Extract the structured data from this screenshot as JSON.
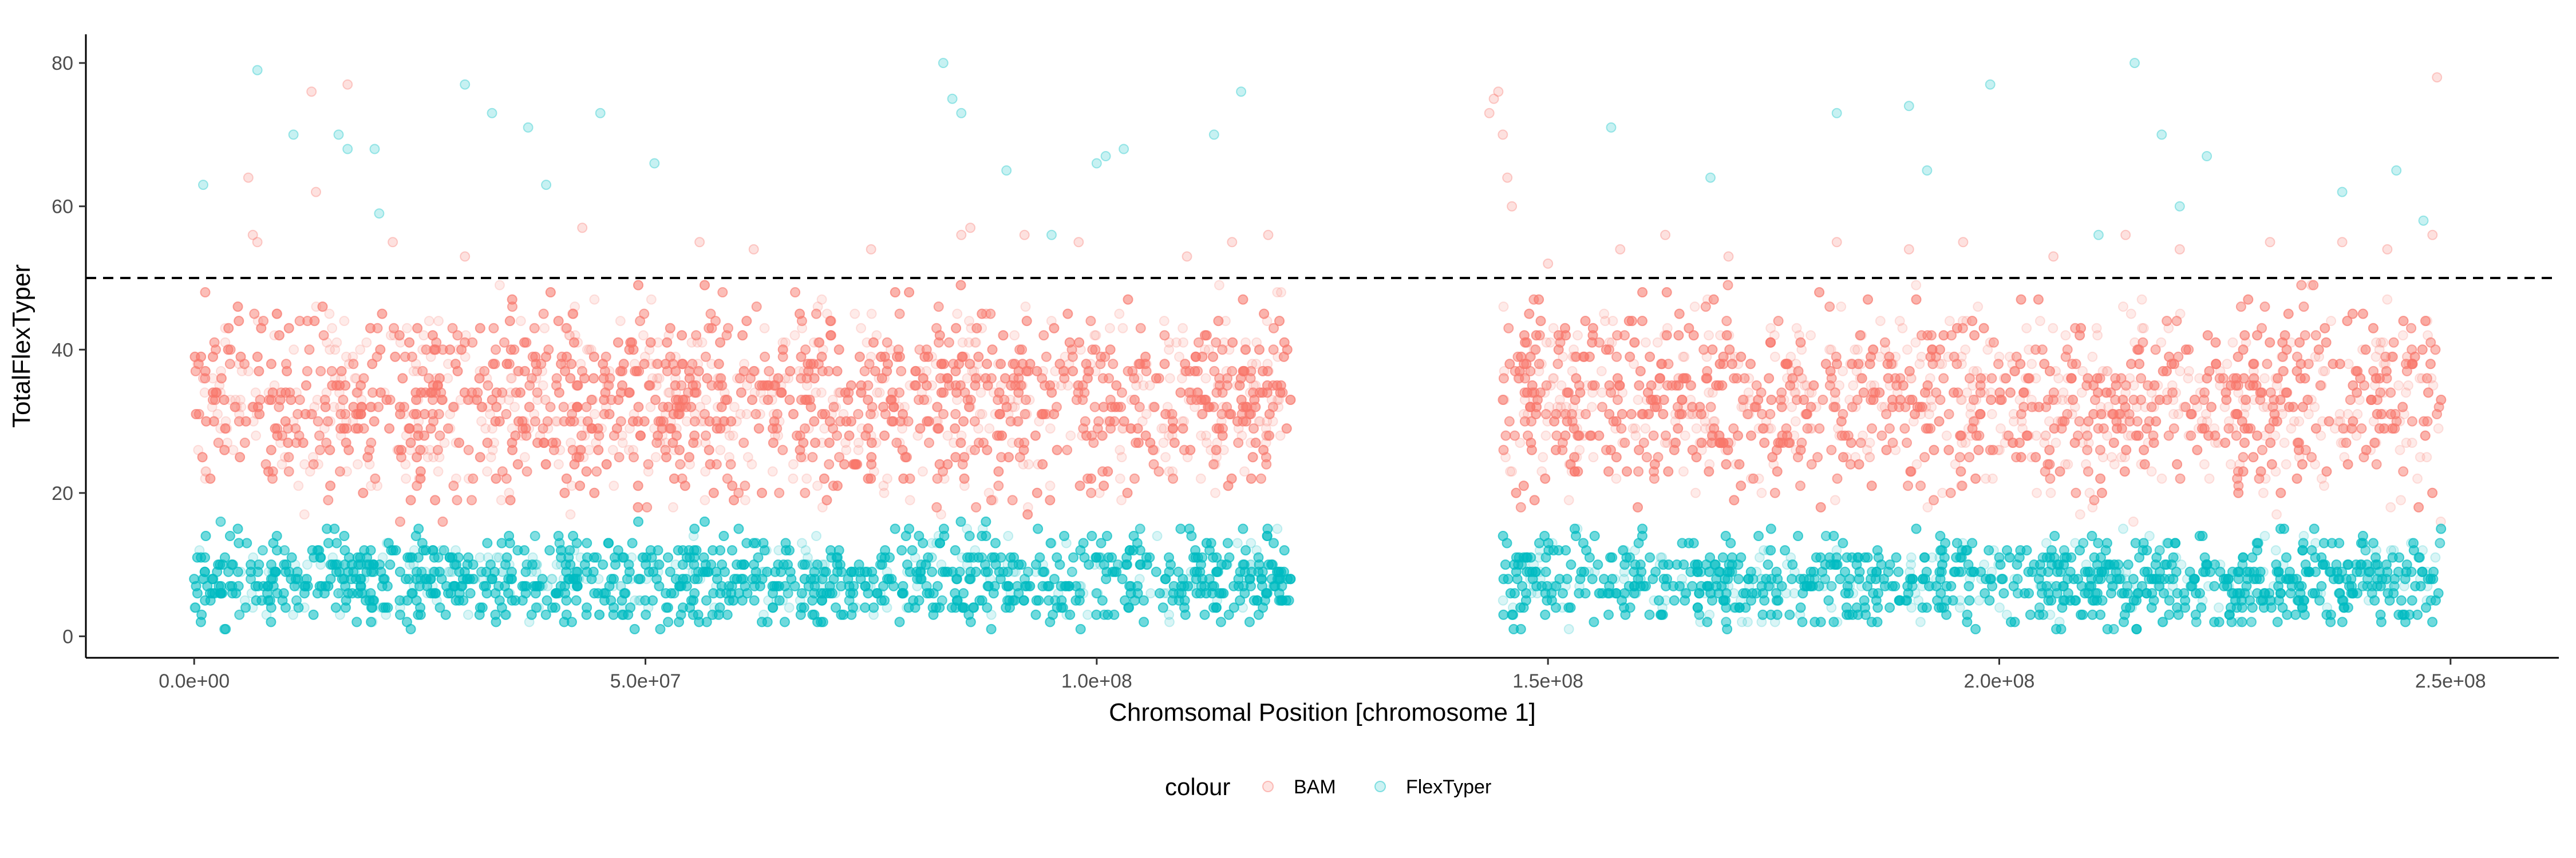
{
  "chart_data": {
    "type": "scatter",
    "title": "",
    "xlabel": "Chromsomal Position [chromosome 1]",
    "ylabel": "TotalFlexTyper",
    "xlim": [
      -12000000,
      262000000
    ],
    "ylim": [
      -3,
      84
    ],
    "x_ticks": [
      {
        "value": 0,
        "label": "0.0e+00"
      },
      {
        "value": 50000000,
        "label": "5.0e+07"
      },
      {
        "value": 100000000,
        "label": "1.0e+08"
      },
      {
        "value": 150000000,
        "label": "1.5e+08"
      },
      {
        "value": 200000000,
        "label": "2.0e+08"
      },
      {
        "value": 250000000,
        "label": "2.5e+08"
      }
    ],
    "y_ticks": [
      {
        "value": 0,
        "label": "0"
      },
      {
        "value": 20,
        "label": "20"
      },
      {
        "value": 40,
        "label": "40"
      },
      {
        "value": 60,
        "label": "60"
      },
      {
        "value": 80,
        "label": "80"
      }
    ],
    "grid": false,
    "reference_line": {
      "y": 50,
      "style": "dashed",
      "color": "#000000"
    },
    "legend": {
      "title": "colour",
      "position": "bottom",
      "entries": [
        {
          "label": "BAM",
          "color": "#F8766D"
        },
        {
          "label": "FlexTyper",
          "color": "#00BFC4"
        }
      ]
    },
    "marker": {
      "shape": "open-circle",
      "alpha": 0.15
    },
    "x_segments": [
      {
        "start": 0,
        "end": 121500000
      },
      {
        "start": 145000000,
        "end": 249000000
      }
    ],
    "series": [
      {
        "name": "BAM",
        "color": "#F8766D",
        "typical_range": [
          18,
          48
        ],
        "center": 33,
        "points": [
          [
            1000000,
            36
          ],
          [
            6000000,
            64
          ],
          [
            6500000,
            56
          ],
          [
            7000000,
            55
          ],
          [
            13000000,
            76
          ],
          [
            13500000,
            62
          ],
          [
            17000000,
            77
          ],
          [
            22000000,
            55
          ],
          [
            30000000,
            53
          ],
          [
            43000000,
            57
          ],
          [
            56000000,
            55
          ],
          [
            62000000,
            54
          ],
          [
            75000000,
            54
          ],
          [
            85000000,
            56
          ],
          [
            86000000,
            57
          ],
          [
            92000000,
            56
          ],
          [
            98000000,
            55
          ],
          [
            110000000,
            53
          ],
          [
            115000000,
            55
          ],
          [
            119000000,
            56
          ],
          [
            143500000,
            73
          ],
          [
            144000000,
            75
          ],
          [
            144500000,
            76
          ],
          [
            145000000,
            70
          ],
          [
            145500000,
            64
          ],
          [
            146000000,
            60
          ],
          [
            150000000,
            52
          ],
          [
            158000000,
            54
          ],
          [
            163000000,
            56
          ],
          [
            170000000,
            53
          ],
          [
            182000000,
            55
          ],
          [
            190000000,
            54
          ],
          [
            196000000,
            55
          ],
          [
            206000000,
            53
          ],
          [
            214000000,
            56
          ],
          [
            220000000,
            54
          ],
          [
            230000000,
            55
          ],
          [
            238000000,
            55
          ],
          [
            243000000,
            54
          ],
          [
            248500000,
            78
          ],
          [
            248000000,
            56
          ]
        ]
      },
      {
        "name": "FlexTyper",
        "color": "#00BFC4",
        "typical_range": [
          1,
          16
        ],
        "center": 8,
        "points": [
          [
            1000000,
            63
          ],
          [
            7000000,
            79
          ],
          [
            11000000,
            70
          ],
          [
            16000000,
            70
          ],
          [
            17000000,
            68
          ],
          [
            20000000,
            68
          ],
          [
            20500000,
            59
          ],
          [
            30000000,
            77
          ],
          [
            33000000,
            73
          ],
          [
            37000000,
            71
          ],
          [
            39000000,
            63
          ],
          [
            45000000,
            73
          ],
          [
            51000000,
            66
          ],
          [
            83000000,
            80
          ],
          [
            84000000,
            75
          ],
          [
            85000000,
            73
          ],
          [
            90000000,
            65
          ],
          [
            95000000,
            56
          ],
          [
            100000000,
            66
          ],
          [
            101000000,
            67
          ],
          [
            103000000,
            68
          ],
          [
            113000000,
            70
          ],
          [
            116000000,
            76
          ],
          [
            157000000,
            71
          ],
          [
            168000000,
            64
          ],
          [
            182000000,
            73
          ],
          [
            190000000,
            74
          ],
          [
            192000000,
            65
          ],
          [
            199000000,
            77
          ],
          [
            211000000,
            56
          ],
          [
            215000000,
            80
          ],
          [
            218000000,
            70
          ],
          [
            220000000,
            60
          ],
          [
            223000000,
            67
          ],
          [
            238000000,
            62
          ],
          [
            244000000,
            65
          ],
          [
            247000000,
            58
          ]
        ]
      }
    ]
  }
}
